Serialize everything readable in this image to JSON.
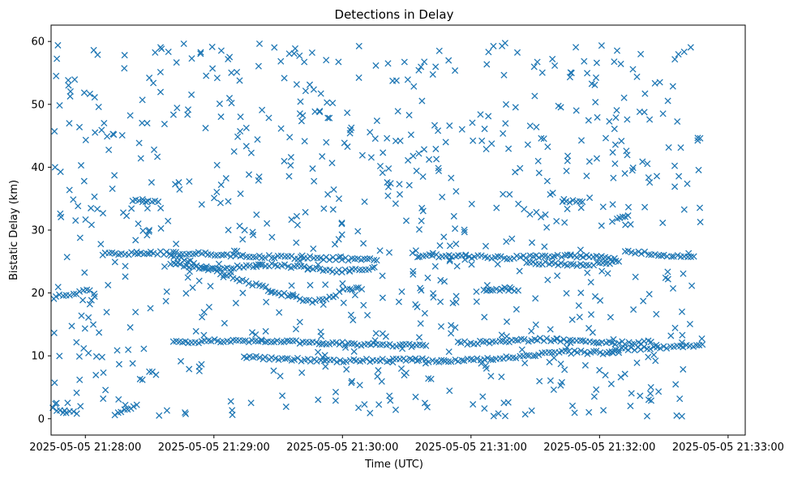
{
  "chart_data": {
    "type": "scatter",
    "title": "Detections in Delay",
    "xlabel": "Time (UTC)",
    "ylabel": "Bistatic Delay (km)",
    "marker": "x",
    "color": "#1f77b4",
    "x_unit": "seconds after 2025-05-05 21:27:44",
    "xlim_seconds": [
      0,
      324
    ],
    "ylim": [
      -2.6,
      62.6
    ],
    "x_ticks": [
      {
        "seconds": 16,
        "label": "2025-05-05 21:28:00"
      },
      {
        "seconds": 76,
        "label": "2025-05-05 21:29:00"
      },
      {
        "seconds": 136,
        "label": "2025-05-05 21:30:00"
      },
      {
        "seconds": 196,
        "label": "2025-05-05 21:31:00"
      },
      {
        "seconds": 256,
        "label": "2025-05-05 21:32:00"
      },
      {
        "seconds": 316,
        "label": "2025-05-05 21:33:00"
      }
    ],
    "y_ticks": [
      {
        "value": 0,
        "label": "0"
      },
      {
        "value": 10,
        "label": "10"
      },
      {
        "value": 20,
        "label": "20"
      },
      {
        "value": 30,
        "label": "30"
      },
      {
        "value": 40,
        "label": "40"
      },
      {
        "value": 50,
        "label": "50"
      },
      {
        "value": 60,
        "label": "60"
      }
    ],
    "detection_time_range_seconds": [
      1,
      305
    ],
    "tracks": [
      {
        "name": "track-26-flat",
        "points": [
          [
            24,
            26.2
          ],
          [
            60,
            26.4
          ],
          [
            97,
            25.8
          ],
          [
            130,
            25.5
          ],
          [
            152,
            25.2
          ]
        ]
      },
      {
        "name": "track-descending",
        "points": [
          [
            56,
            26.0
          ],
          [
            85,
            22.5
          ],
          [
            106,
            20.0
          ],
          [
            122,
            18.6
          ],
          [
            133,
            19.6
          ],
          [
            138,
            20.8
          ],
          [
            145,
            20.6
          ]
        ]
      },
      {
        "name": "track-24",
        "points": [
          [
            56,
            24.7
          ],
          [
            75,
            23.8
          ],
          [
            103,
            24.5
          ],
          [
            136,
            23.4
          ],
          [
            150,
            24.0
          ]
        ]
      },
      {
        "name": "track-19-early",
        "points": [
          [
            1,
            19.3
          ],
          [
            18,
            20.4
          ]
        ]
      },
      {
        "name": "track-1-early",
        "points": [
          [
            1,
            1.5
          ],
          [
            12,
            0.8
          ]
        ]
      },
      {
        "name": "track-1-rise",
        "points": [
          [
            30,
            0.6
          ],
          [
            40,
            2.2
          ]
        ]
      },
      {
        "name": "track-34-early",
        "points": [
          [
            38,
            34.8
          ],
          [
            50,
            34.5
          ]
        ]
      },
      {
        "name": "track-12",
        "points": [
          [
            57,
            12.1
          ],
          [
            85,
            12.5
          ],
          [
            110,
            12.3
          ],
          [
            130,
            12.0
          ],
          [
            152,
            11.8
          ],
          [
            175,
            11.6
          ]
        ]
      },
      {
        "name": "track-9-mid",
        "points": [
          [
            90,
            9.8
          ],
          [
            103,
            9.5
          ],
          [
            138,
            9.2
          ],
          [
            155,
            9.3
          ],
          [
            175,
            9.4
          ]
        ]
      },
      {
        "name": "track-26-right",
        "points": [
          [
            172,
            26.0
          ],
          [
            210,
            25.6
          ],
          [
            250,
            25.9
          ],
          [
            263,
            25.5
          ]
        ]
      },
      {
        "name": "track-25-right2",
        "points": [
          [
            222,
            24.8
          ],
          [
            250,
            24.5
          ],
          [
            265,
            25.0
          ]
        ]
      },
      {
        "name": "track-26-late",
        "points": [
          [
            268,
            26.5
          ],
          [
            300,
            25.8
          ]
        ]
      },
      {
        "name": "track-12-right",
        "points": [
          [
            190,
            12.0
          ],
          [
            230,
            12.6
          ],
          [
            262,
            12.0
          ],
          [
            280,
            12.2
          ]
        ]
      },
      {
        "name": "track-9-right",
        "points": [
          [
            175,
            9.0
          ],
          [
            205,
            9.5
          ],
          [
            240,
            10.6
          ],
          [
            265,
            10.5
          ]
        ]
      },
      {
        "name": "track-11-late",
        "points": [
          [
            262,
            10.9
          ],
          [
            304,
            11.8
          ]
        ]
      },
      {
        "name": "track-20-right",
        "points": [
          [
            202,
            20.6
          ],
          [
            218,
            20.4
          ]
        ]
      },
      {
        "name": "track-34-right",
        "points": [
          [
            239,
            34.6
          ],
          [
            248,
            34.5
          ]
        ]
      },
      {
        "name": "track-32-right",
        "points": [
          [
            264,
            32.0
          ],
          [
            268,
            32.1
          ]
        ]
      }
    ],
    "track_point_spacing_seconds": 1.5,
    "noise_point_count": 760,
    "noise_delay_range_km": [
      0.3,
      59.8
    ],
    "noise_seed": 1234567
  }
}
